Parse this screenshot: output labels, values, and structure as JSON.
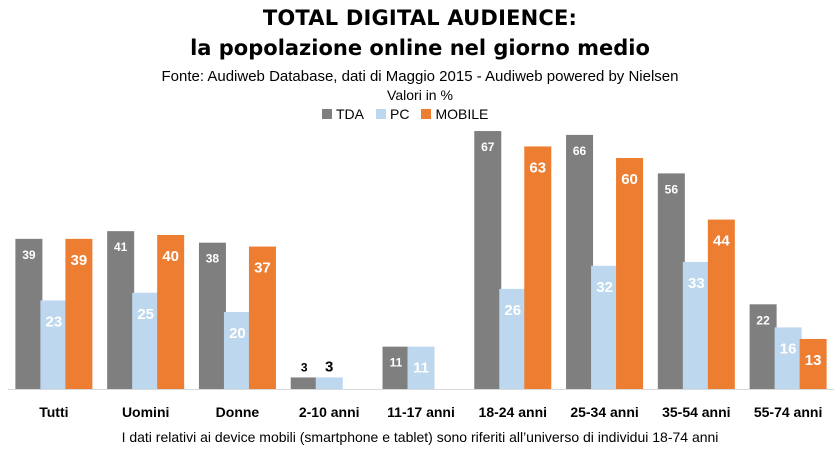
{
  "header": {
    "title": "TOTAL DIGITAL AUDIENCE:",
    "subtitle": "la popolazione online nel giorno medio",
    "source": "Fonte: Audiweb Database, dati di Maggio 2015 - Audiweb powered by Nielsen",
    "units": "Valori in %"
  },
  "footnote": "I dati relativi ai device mobili (smartphone e tablet) sono riferiti all’universo di individui 18-74 anni",
  "colors": {
    "TDA": "#7f7f7f",
    "PC": "#bdd7ee",
    "MOBILE": "#ed7d31"
  },
  "chart_data": {
    "type": "bar",
    "title": "TOTAL DIGITAL AUDIENCE:",
    "subtitle": "la popolazione online nel giorno medio",
    "categories": [
      "Tutti",
      "Uomini",
      "Donne",
      "2-10 anni",
      "11-17 anni",
      "18-24 anni",
      "25-34 anni",
      "35-54 anni",
      "55-74 anni"
    ],
    "series": [
      {
        "name": "TDA",
        "values": [
          39,
          41,
          38,
          3,
          11,
          67,
          66,
          56,
          22
        ]
      },
      {
        "name": "PC",
        "values": [
          23,
          25,
          20,
          3,
          11,
          26,
          32,
          33,
          16
        ]
      },
      {
        "name": "MOBILE",
        "values": [
          39,
          40,
          37,
          null,
          null,
          63,
          60,
          44,
          13
        ]
      }
    ],
    "ylim": [
      0,
      70
    ],
    "grid": false,
    "legend": "top"
  }
}
